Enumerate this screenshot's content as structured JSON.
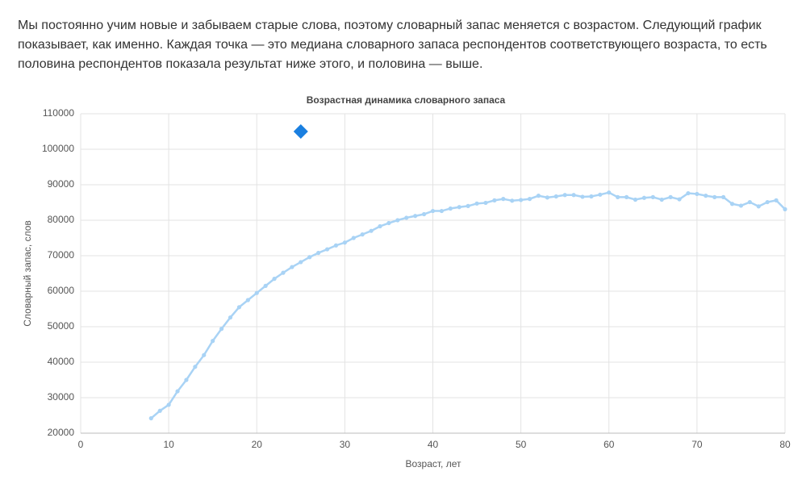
{
  "intro_text": "Мы постоянно учим новые и забываем старые слова, поэтому словарный запас меняется с возрастом. Следующий график показывает, как именно. Каждая точка — это медиана словарного запаса респондентов соответствующего возраста, то есть половина респондентов показала результат ниже этого, и половина — выше.",
  "chart_data": {
    "type": "line",
    "title": "Возрастная динамика словарного запаса",
    "x_label": "Возраст, лет",
    "y_label": "Словарный запас, слов",
    "x": [
      8,
      9,
      10,
      11,
      12,
      13,
      14,
      15,
      16,
      17,
      18,
      19,
      20,
      21,
      22,
      23,
      24,
      25,
      26,
      27,
      28,
      29,
      30,
      31,
      32,
      33,
      34,
      35,
      36,
      37,
      38,
      39,
      40,
      41,
      42,
      43,
      44,
      45,
      46,
      47,
      48,
      49,
      50,
      51,
      52,
      53,
      54,
      55,
      56,
      57,
      58,
      59,
      60,
      61,
      62,
      63,
      64,
      65,
      66,
      67,
      68,
      69,
      70,
      71,
      72,
      73,
      74,
      75,
      76,
      77,
      78,
      79,
      80
    ],
    "series": [
      {
        "color": "#a9d3f5",
        "marker": "circle",
        "values": [
          24200,
          26300,
          28000,
          31800,
          35000,
          38700,
          42000,
          46000,
          49400,
          52600,
          55500,
          57500,
          59500,
          61500,
          63500,
          65200,
          66800,
          68200,
          69600,
          70800,
          71800,
          72900,
          73700,
          75000,
          76000,
          77000,
          78300,
          79200,
          80000,
          80700,
          81200,
          81700,
          82600,
          82600,
          83300,
          83700,
          84000,
          84700,
          84900,
          85600,
          86000,
          85500,
          85700,
          86000,
          86900,
          86400,
          86700,
          87100,
          87100,
          86600,
          86700,
          87200,
          87800,
          86500,
          86500,
          85800,
          86300,
          86500,
          85800,
          86500,
          85900,
          87600,
          87400,
          86900,
          86500,
          86500,
          84600,
          84100,
          85100,
          83900,
          85100,
          85600,
          83100
        ]
      },
      {
        "color": "#1a7fe0",
        "marker": "diamond",
        "x": [
          25
        ],
        "values": [
          105000
        ]
      }
    ],
    "xlim": [
      0,
      80
    ],
    "xticks": [
      0,
      10,
      20,
      30,
      40,
      50,
      60,
      70,
      80
    ],
    "ylim": [
      20000,
      110000
    ],
    "yticks": [
      20000,
      30000,
      40000,
      50000,
      60000,
      70000,
      80000,
      90000,
      100000,
      110000
    ],
    "grid": true
  }
}
